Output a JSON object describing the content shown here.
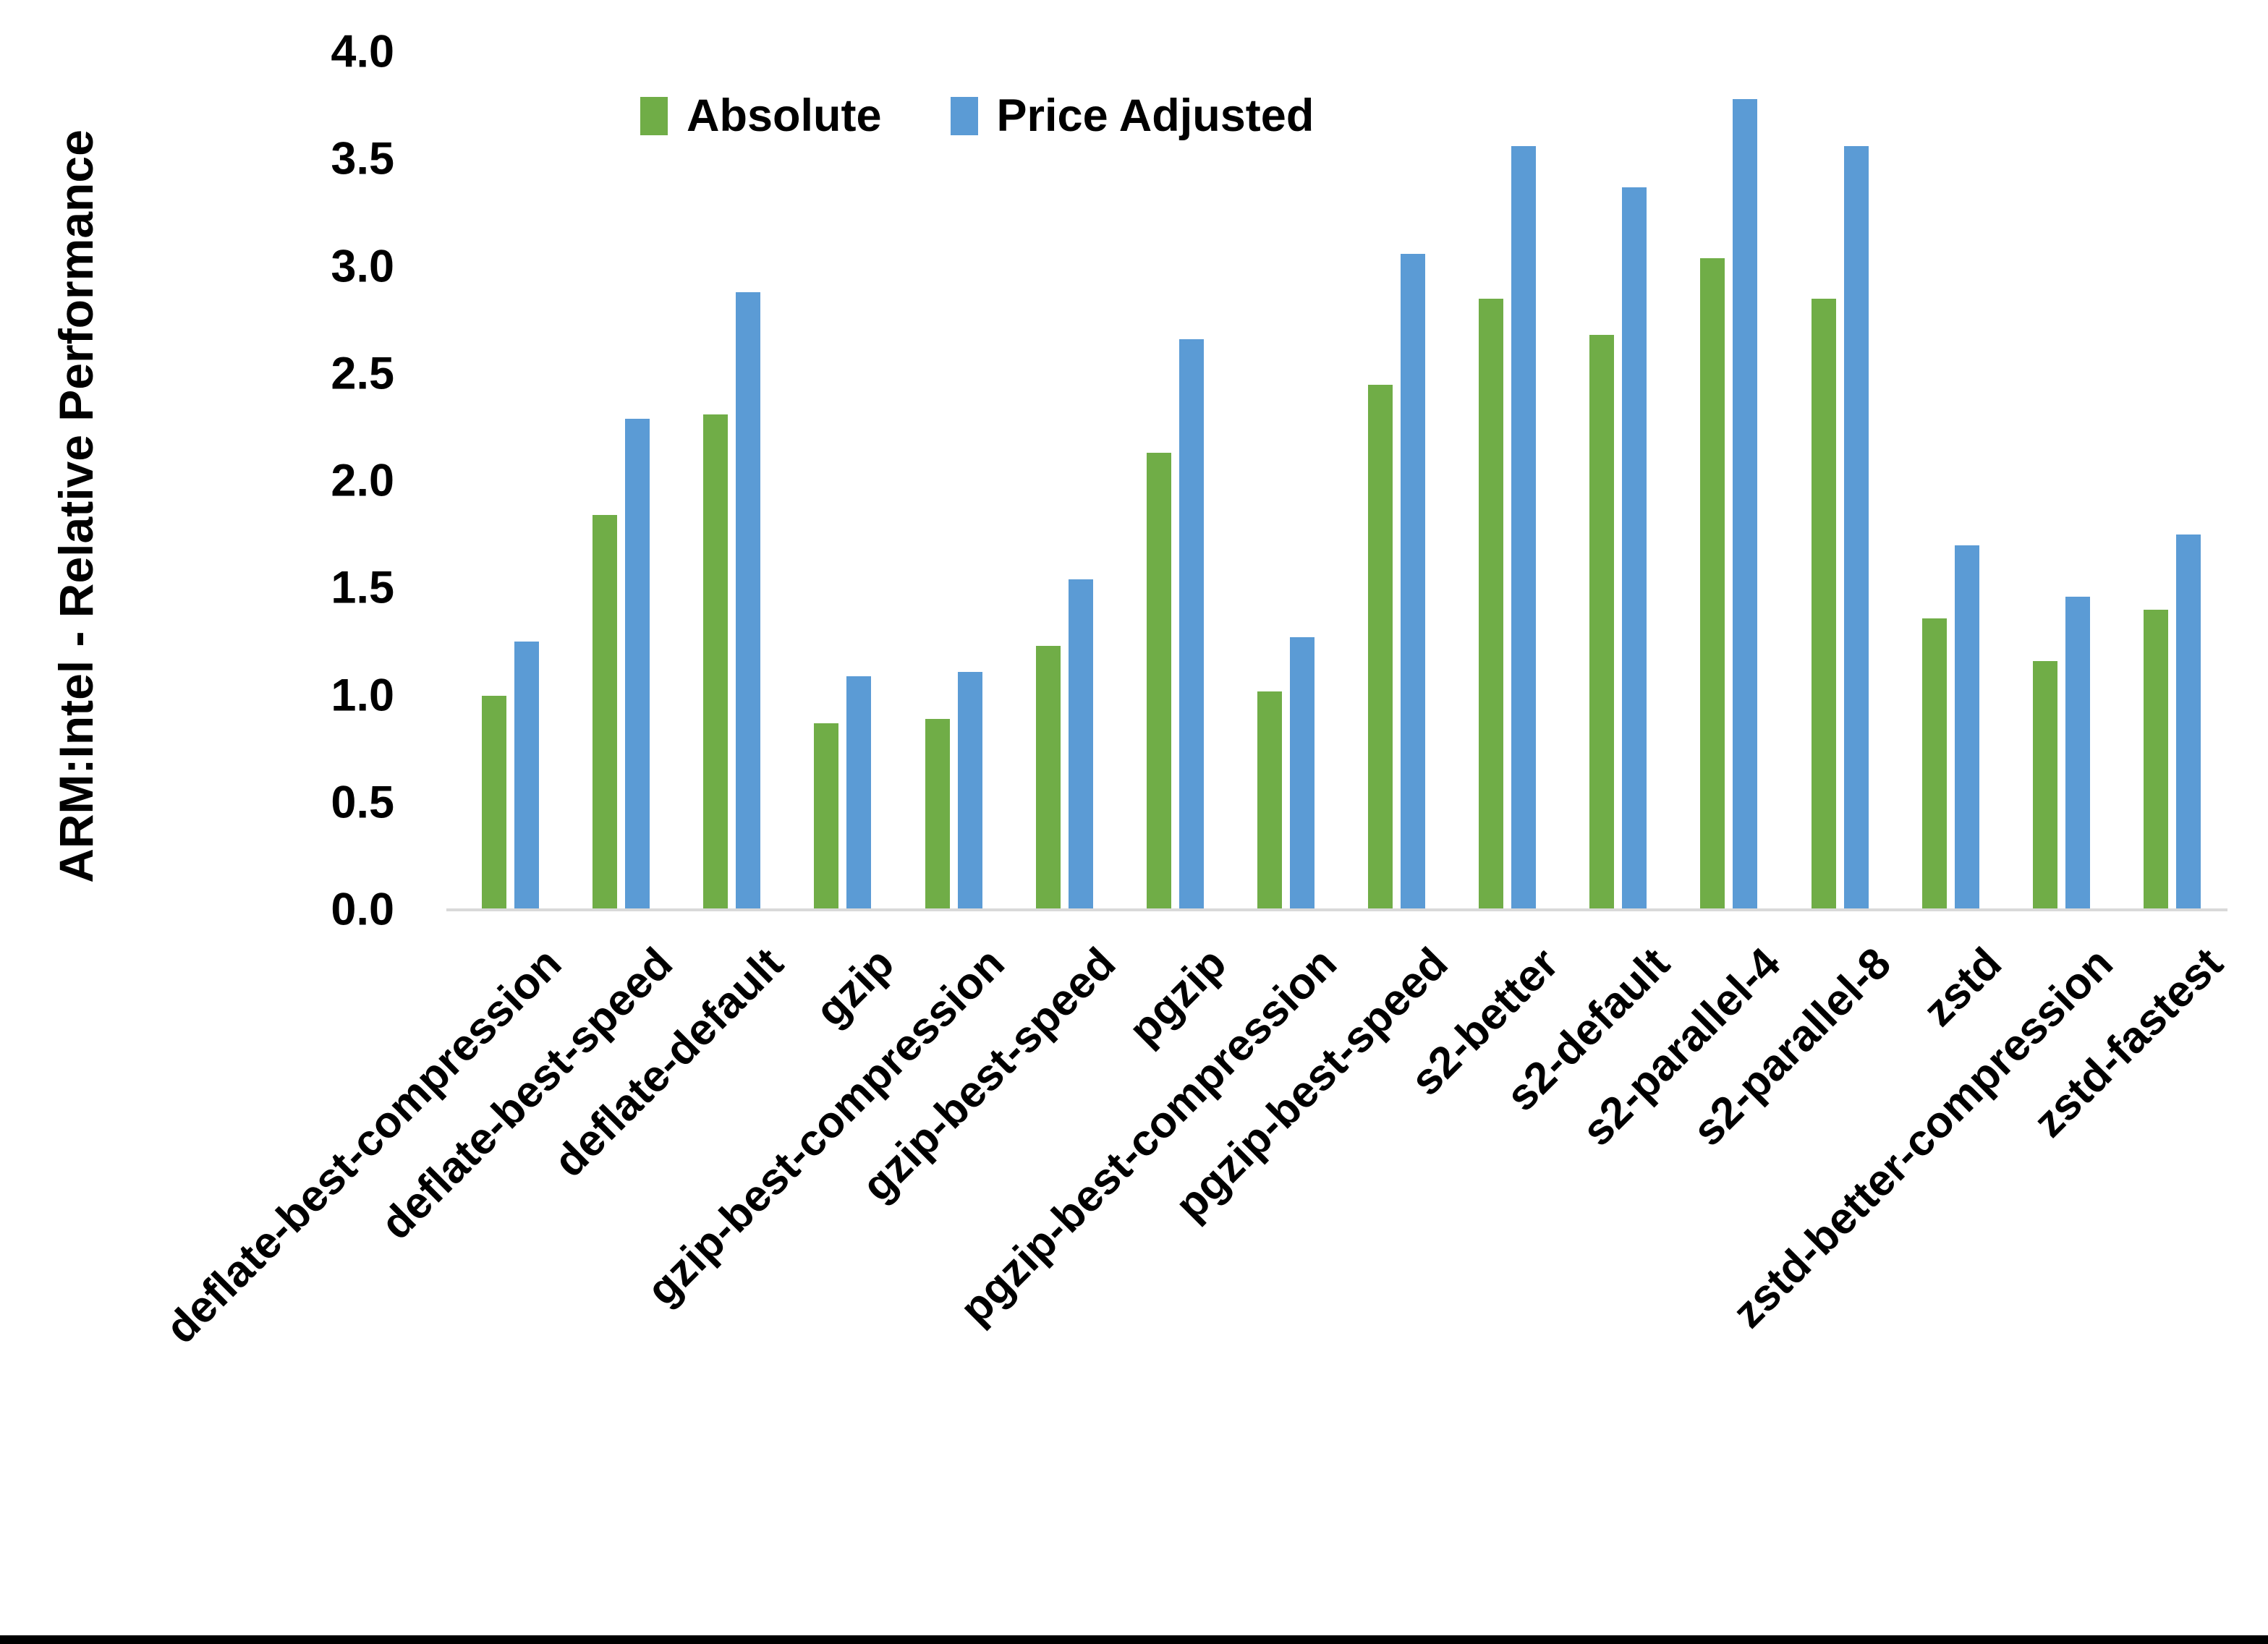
{
  "chart_data": {
    "type": "bar",
    "title": "",
    "ylabel": "ARM:Intel - Relative Performance",
    "xlabel": "",
    "y_axis": {
      "min": 0.0,
      "max": 4.0,
      "step": 0.5,
      "tick_decimals": 1
    },
    "grid": false,
    "legend_position": "top-center",
    "categories": [
      "deflate-best-compression",
      "deflate-best-speed",
      "deflate-default",
      "gzip",
      "gzip-best-compression",
      "gzip-best-speed",
      "pgzip",
      "pgzip-best-compression",
      "pgzip-best-speed",
      "s2-better",
      "s2-default",
      "s2-parallel-4",
      "s2-parallel-8",
      "zstd",
      "zstd-better-compression",
      "zstd-fastest"
    ],
    "series": [
      {
        "name": "Absolute",
        "color": "#70AD47",
        "values": [
          1.0,
          1.84,
          2.31,
          0.87,
          0.89,
          1.23,
          2.13,
          1.02,
          2.45,
          2.85,
          2.68,
          3.04,
          2.85,
          1.36,
          1.16,
          1.4
        ]
      },
      {
        "name": "Price Adjusted",
        "color": "#5B9BD5",
        "values": [
          1.25,
          2.29,
          2.88,
          1.09,
          1.11,
          1.54,
          2.66,
          1.27,
          3.06,
          3.56,
          3.37,
          3.78,
          3.56,
          1.7,
          1.46,
          1.75
        ]
      }
    ],
    "axis_line_color": "#D9D9D9",
    "text_color": "#000000",
    "frame_bottom_color": "#000000"
  }
}
